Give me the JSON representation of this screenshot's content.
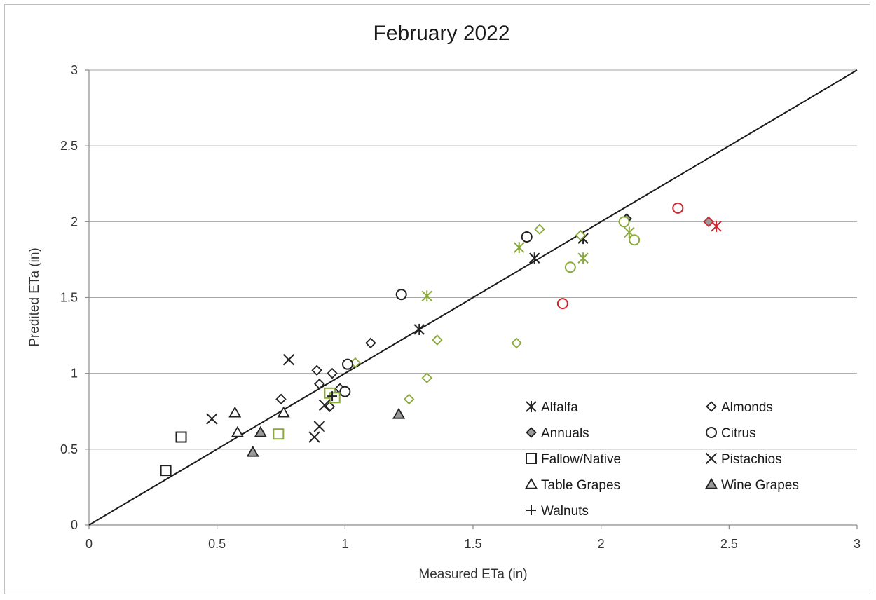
{
  "chart_data": {
    "type": "scatter",
    "title": "February 2022",
    "xlabel": "Measured ETa (in)",
    "ylabel": "Predited ETa (in)",
    "xlim": [
      0,
      3
    ],
    "ylim": [
      0,
      3
    ],
    "x_ticks": [
      0,
      0.5,
      1,
      1.5,
      2,
      2.5,
      3
    ],
    "y_ticks": [
      0,
      0.5,
      1,
      1.5,
      2,
      2.5,
      3
    ],
    "x_tick_labels": [
      "0",
      "0.5",
      "1",
      "1.5",
      "2",
      "2.5",
      "3"
    ],
    "y_tick_labels": [
      "0",
      "0.5",
      "1",
      "1.5",
      "2",
      "2.5",
      "3"
    ],
    "grid": "horizontal",
    "reference_line": {
      "from": [
        0,
        0
      ],
      "to": [
        3,
        3
      ]
    },
    "legend_position": "bottom-right",
    "colors": {
      "black": "#222222",
      "green": "#8aaa3c",
      "red": "#d0242c"
    },
    "series": [
      {
        "name": "Alfalfa",
        "marker": "asterisk",
        "points": [
          {
            "x": 0.96,
            "y": 0.86,
            "color": "black"
          },
          {
            "x": 1.29,
            "y": 1.29,
            "color": "black"
          },
          {
            "x": 1.74,
            "y": 1.76,
            "color": "black"
          },
          {
            "x": 1.93,
            "y": 1.89,
            "color": "black"
          },
          {
            "x": 1.32,
            "y": 1.51,
            "color": "green"
          },
          {
            "x": 1.68,
            "y": 1.83,
            "color": "green"
          },
          {
            "x": 1.93,
            "y": 1.76,
            "color": "green"
          },
          {
            "x": 2.11,
            "y": 1.93,
            "color": "green"
          },
          {
            "x": 2.45,
            "y": 1.97,
            "color": "red"
          }
        ]
      },
      {
        "name": "Almonds",
        "marker": "diamond-open",
        "points": [
          {
            "x": 0.75,
            "y": 0.83,
            "color": "black"
          },
          {
            "x": 0.89,
            "y": 1.02,
            "color": "black"
          },
          {
            "x": 0.9,
            "y": 0.93,
            "color": "black"
          },
          {
            "x": 0.95,
            "y": 1.0,
            "color": "black"
          },
          {
            "x": 0.94,
            "y": 0.78,
            "color": "black"
          },
          {
            "x": 0.98,
            "y": 0.9,
            "color": "black"
          },
          {
            "x": 1.1,
            "y": 1.2,
            "color": "black"
          },
          {
            "x": 1.04,
            "y": 1.07,
            "color": "green"
          },
          {
            "x": 1.25,
            "y": 0.83,
            "color": "green"
          },
          {
            "x": 1.32,
            "y": 0.97,
            "color": "green"
          },
          {
            "x": 1.36,
            "y": 1.22,
            "color": "green"
          },
          {
            "x": 1.67,
            "y": 1.2,
            "color": "green"
          },
          {
            "x": 1.76,
            "y": 1.95,
            "color": "green"
          },
          {
            "x": 1.92,
            "y": 1.91,
            "color": "green"
          }
        ]
      },
      {
        "name": "Annuals",
        "marker": "diamond-gray",
        "points": [
          {
            "x": 2.1,
            "y": 2.02,
            "color": "black"
          },
          {
            "x": 2.42,
            "y": 2.0,
            "color": "red"
          }
        ]
      },
      {
        "name": "Citrus",
        "marker": "circle-open",
        "points": [
          {
            "x": 1.0,
            "y": 0.88,
            "color": "black"
          },
          {
            "x": 1.01,
            "y": 1.06,
            "color": "black"
          },
          {
            "x": 1.22,
            "y": 1.52,
            "color": "black"
          },
          {
            "x": 1.71,
            "y": 1.9,
            "color": "black"
          },
          {
            "x": 1.88,
            "y": 1.7,
            "color": "green"
          },
          {
            "x": 2.09,
            "y": 2.0,
            "color": "green"
          },
          {
            "x": 2.13,
            "y": 1.88,
            "color": "green"
          },
          {
            "x": 1.85,
            "y": 1.46,
            "color": "red"
          },
          {
            "x": 2.3,
            "y": 2.09,
            "color": "red"
          }
        ]
      },
      {
        "name": "Fallow/Native",
        "marker": "square-open",
        "points": [
          {
            "x": 0.3,
            "y": 0.36,
            "color": "black"
          },
          {
            "x": 0.36,
            "y": 0.58,
            "color": "black"
          },
          {
            "x": 0.74,
            "y": 0.6,
            "color": "green"
          },
          {
            "x": 0.94,
            "y": 0.87,
            "color": "green"
          },
          {
            "x": 0.96,
            "y": 0.84,
            "color": "green"
          }
        ]
      },
      {
        "name": "Pistachios",
        "marker": "x",
        "points": [
          {
            "x": 0.48,
            "y": 0.7,
            "color": "black"
          },
          {
            "x": 0.78,
            "y": 1.09,
            "color": "black"
          },
          {
            "x": 0.88,
            "y": 0.58,
            "color": "black"
          },
          {
            "x": 0.9,
            "y": 0.65,
            "color": "black"
          },
          {
            "x": 0.92,
            "y": 0.79,
            "color": "black"
          }
        ]
      },
      {
        "name": "Table Grapes",
        "marker": "triangle-open",
        "points": [
          {
            "x": 0.57,
            "y": 0.74,
            "color": "black"
          },
          {
            "x": 0.58,
            "y": 0.61,
            "color": "black"
          },
          {
            "x": 0.76,
            "y": 0.74,
            "color": "black"
          }
        ]
      },
      {
        "name": "Wine Grapes",
        "marker": "triangle-gray",
        "points": [
          {
            "x": 0.64,
            "y": 0.48,
            "color": "black"
          },
          {
            "x": 0.67,
            "y": 0.61,
            "color": "black"
          },
          {
            "x": 1.21,
            "y": 0.73,
            "color": "black"
          }
        ]
      },
      {
        "name": "Walnuts",
        "marker": "plus",
        "points": [
          {
            "x": 0.95,
            "y": 0.85,
            "color": "black"
          }
        ]
      }
    ]
  }
}
